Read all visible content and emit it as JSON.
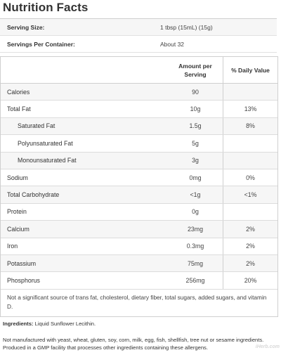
{
  "title": "Nutrition Facts",
  "serving": [
    {
      "label": "Serving Size:",
      "value": "1 tbsp (15mL) (15g)"
    },
    {
      "label": "Servings Per Container:",
      "value": "About 32"
    }
  ],
  "table_header": {
    "amount": "Amount per Serving",
    "dv": "% Daily Value"
  },
  "nutrients": [
    {
      "name": "Calories",
      "amount": "90",
      "dv": ""
    },
    {
      "name": "Total Fat",
      "amount": "10g",
      "dv": "13%"
    },
    {
      "name": "Saturated Fat",
      "amount": "1.5g",
      "dv": "8%"
    },
    {
      "name": "Polyunsaturated Fat",
      "amount": "5g",
      "dv": ""
    },
    {
      "name": "Monounsaturated Fat",
      "amount": "3g",
      "dv": ""
    },
    {
      "name": "Sodium",
      "amount": "0mg",
      "dv": "0%"
    },
    {
      "name": "Total Carbohydrate",
      "amount": "<1g",
      "dv": "<1%"
    },
    {
      "name": "Protein",
      "amount": "0g",
      "dv": ""
    },
    {
      "name": "Calcium",
      "amount": "23mg",
      "dv": "2%"
    },
    {
      "name": "Iron",
      "amount": "0.3mg",
      "dv": "2%"
    },
    {
      "name": "Potassium",
      "amount": "75mg",
      "dv": "2%"
    },
    {
      "name": "Phosphorus",
      "amount": "256mg",
      "dv": "20%"
    }
  ],
  "footnote": "Not a significant source of trans fat, cholesterol, dietary fiber, total sugars, added sugars, and vitamin D.",
  "ingredients": {
    "label": "Ingredients:",
    "text": "Liquid Sunflower Lecithin."
  },
  "allergen": "Not manufactured with yeast, wheat, gluten, soy, corn, milk, egg, fish, shellfish, tree nut  or sesame ingredients. Produced in a GMP facility that processes other ingredients containing these allergens.",
  "watermark": "iHerb.com"
}
